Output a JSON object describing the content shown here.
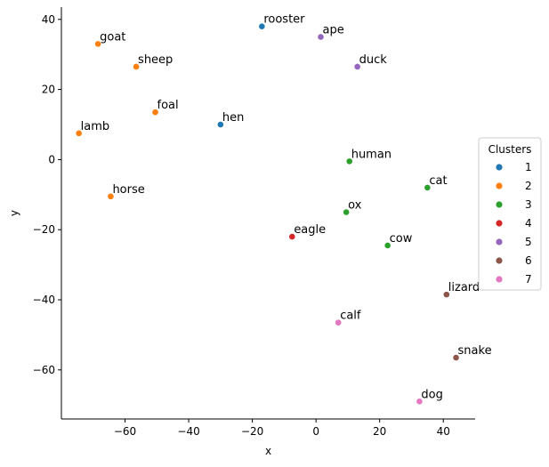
{
  "chart_data": {
    "type": "scatter",
    "xlabel": "x",
    "ylabel": "y",
    "xlim": [
      -80,
      50
    ],
    "ylim": [
      -74,
      43.5
    ],
    "x_ticks": [
      -60,
      -40,
      -20,
      0,
      20,
      40
    ],
    "y_ticks": [
      -60,
      -40,
      -20,
      0,
      20,
      40
    ],
    "x_tick_labels": [
      "−60",
      "−40",
      "−20",
      "0",
      "20",
      "40"
    ],
    "y_tick_labels": [
      "−60",
      "−40",
      "−20",
      "0",
      "20",
      "40"
    ],
    "grid": false,
    "legend": {
      "title": "Clusters",
      "placement": "right",
      "entries": [
        {
          "label": "1",
          "color": "#1f77b4"
        },
        {
          "label": "2",
          "color": "#ff7f0e"
        },
        {
          "label": "3",
          "color": "#2ca02c"
        },
        {
          "label": "4",
          "color": "#d62728"
        },
        {
          "label": "5",
          "color": "#9467bd"
        },
        {
          "label": "6",
          "color": "#8c564b"
        },
        {
          "label": "7",
          "color": "#e377c2"
        }
      ]
    },
    "points": [
      {
        "label": "rooster",
        "x": -17,
        "y": 38,
        "cluster": "1"
      },
      {
        "label": "hen",
        "x": -30,
        "y": 10,
        "cluster": "1"
      },
      {
        "label": "goat",
        "x": -68.5,
        "y": 33,
        "cluster": "2"
      },
      {
        "label": "sheep",
        "x": -56.5,
        "y": 26.5,
        "cluster": "2"
      },
      {
        "label": "foal",
        "x": -50.5,
        "y": 13.5,
        "cluster": "2"
      },
      {
        "label": "lamb",
        "x": -74.5,
        "y": 7.5,
        "cluster": "2"
      },
      {
        "label": "horse",
        "x": -64.5,
        "y": -10.5,
        "cluster": "2"
      },
      {
        "label": "human",
        "x": 10.5,
        "y": -0.5,
        "cluster": "3"
      },
      {
        "label": "cat",
        "x": 35,
        "y": -8,
        "cluster": "3"
      },
      {
        "label": "ox",
        "x": 9.5,
        "y": -15,
        "cluster": "3"
      },
      {
        "label": "cow",
        "x": 22.5,
        "y": -24.5,
        "cluster": "3"
      },
      {
        "label": "eagle",
        "x": -7.5,
        "y": -22,
        "cluster": "4"
      },
      {
        "label": "ape",
        "x": 1.5,
        "y": 35,
        "cluster": "5"
      },
      {
        "label": "duck",
        "x": 13,
        "y": 26.5,
        "cluster": "5"
      },
      {
        "label": "lizard",
        "x": 41,
        "y": -38.5,
        "cluster": "6"
      },
      {
        "label": "snake",
        "x": 44,
        "y": -56.5,
        "cluster": "6"
      },
      {
        "label": "calf",
        "x": 7,
        "y": -46.5,
        "cluster": "7"
      },
      {
        "label": "dog",
        "x": 32.5,
        "y": -69,
        "cluster": "7"
      }
    ]
  }
}
